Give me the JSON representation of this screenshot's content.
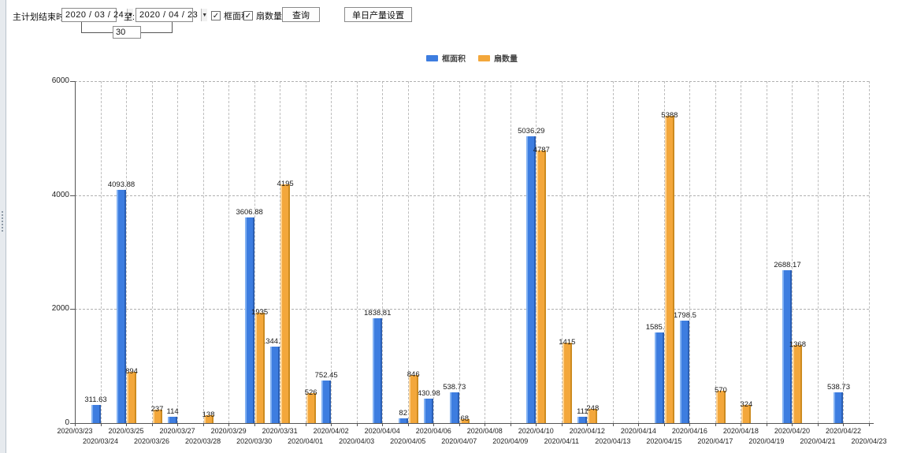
{
  "toolbar": {
    "main_label": "主计划结束时间:",
    "date_from": "2020 / 03 / 24",
    "to_label": "至:",
    "date_to": "2020 / 04 / 23",
    "interval_value": "30",
    "checkbox_area": "框面积",
    "checkbox_fan": "扇数量",
    "query_button": "查询",
    "daily_output_button": "单日产量设置",
    "checkbox_checked_glyph": "✓",
    "dropdown_arrow_glyph": "▼"
  },
  "legend": {
    "items": [
      {
        "label": "框面积",
        "color": "#3d7de0"
      },
      {
        "label": "扇数量",
        "color": "#f3a73b"
      }
    ]
  },
  "chart_data": {
    "type": "bar",
    "title": "",
    "xlabel": "",
    "ylabel": "",
    "ylim": [
      0,
      6000
    ],
    "yticks": [
      0,
      2000,
      4000,
      6000
    ],
    "grid": true,
    "legend_position": "top-center",
    "categories": [
      "2020/03/23",
      "2020/03/24",
      "2020/03/25",
      "2020/03/26",
      "2020/03/27",
      "2020/03/28",
      "2020/03/29",
      "2020/03/30",
      "2020/03/31",
      "2020/04/01",
      "2020/04/02",
      "2020/04/03",
      "2020/04/04",
      "2020/04/05",
      "2020/04/06",
      "2020/04/07",
      "2020/04/08",
      "2020/04/09",
      "2020/04/10",
      "2020/04/11",
      "2020/04/12",
      "2020/04/13",
      "2020/04/14",
      "2020/04/15",
      "2020/04/16",
      "2020/04/17",
      "2020/04/18",
      "2020/04/19",
      "2020/04/20",
      "2020/04/21",
      "2020/04/22",
      "2020/04/23"
    ],
    "series": [
      {
        "name": "框面积",
        "color": "#3d7de0",
        "values": [
          null,
          311.63,
          4093.88,
          null,
          114,
          null,
          null,
          3606.88,
          1344.95,
          null,
          752.45,
          null,
          1838.81,
          82,
          430.98,
          538.73,
          null,
          null,
          5036.29,
          null,
          111,
          null,
          null,
          1585.96,
          1798.5,
          null,
          null,
          null,
          2688.17,
          null,
          538.73,
          null
        ]
      },
      {
        "name": "扇数量",
        "color": "#f3a73b",
        "values": [
          null,
          null,
          894,
          237,
          null,
          138,
          null,
          1935,
          4195,
          526,
          null,
          null,
          null,
          846,
          null,
          68,
          null,
          null,
          4787,
          1415,
          248,
          null,
          null,
          5388,
          null,
          570,
          324,
          null,
          1368,
          null,
          null,
          null
        ]
      }
    ]
  }
}
